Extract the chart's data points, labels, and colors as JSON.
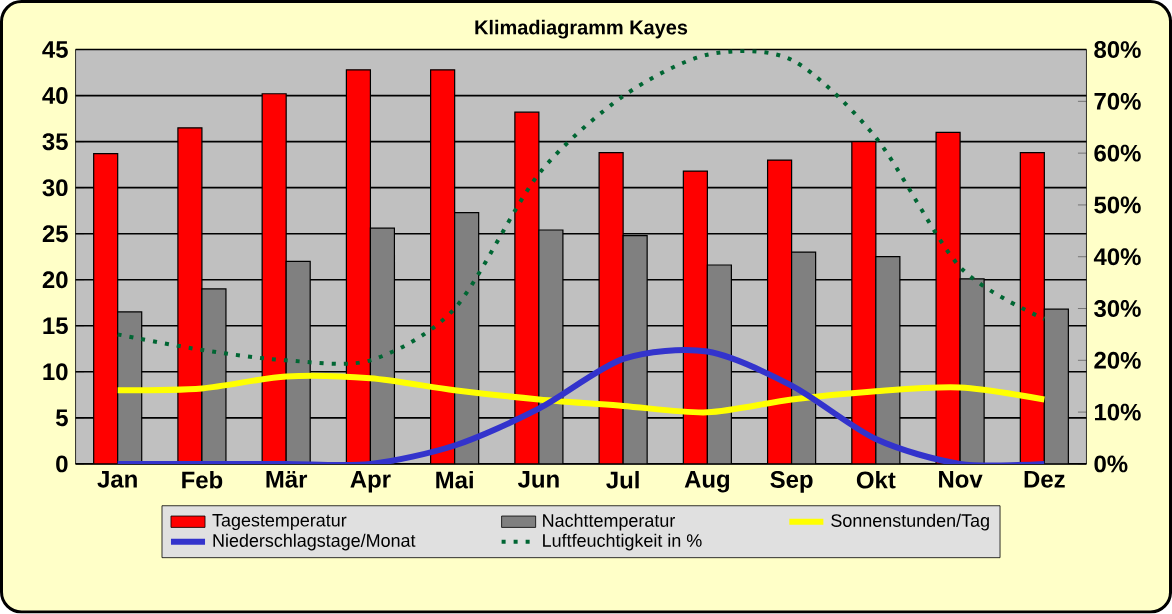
{
  "chart_data": {
    "type": "bar",
    "title": "Klimadiagramm Kayes",
    "categories": [
      "Jan",
      "Feb",
      "Mär",
      "Apr",
      "Mai",
      "Jun",
      "Jul",
      "Aug",
      "Sep",
      "Okt",
      "Nov",
      "Dez"
    ],
    "series": [
      {
        "name": "Tagestemperatur",
        "color": "#ff0000",
        "values": [
          33.7,
          36.5,
          40.2,
          42.8,
          42.8,
          38.2,
          33.8,
          31.8,
          33.0,
          35.0,
          36.0,
          33.8
        ]
      },
      {
        "name": "Nachttemperatur",
        "color": "#808080",
        "values": [
          16.5,
          19.0,
          22.0,
          25.6,
          27.3,
          25.4,
          24.8,
          21.6,
          23.0,
          22.5,
          20.1,
          16.8
        ]
      },
      {
        "name": "Sonnenstunden/Tag",
        "type": "line",
        "color": "#ffff00",
        "line_style": "solid",
        "values": [
          8.0,
          8.2,
          9.5,
          9.3,
          8.0,
          7.0,
          6.3,
          5.6,
          7.0,
          7.9,
          8.3,
          7.0
        ]
      },
      {
        "name": "Niederschlagstage/Monat",
        "type": "line",
        "color": "#3333cc",
        "line_style": "solid",
        "values": [
          0,
          0,
          0,
          0,
          2.0,
          6.0,
          11.4,
          12.2,
          8.5,
          2.7,
          0,
          0
        ]
      },
      {
        "name": "Luftfeuchtigkeit in %",
        "type": "line",
        "color": "#006633",
        "line_style": "dotted",
        "axis": "y2",
        "values": [
          25,
          22,
          20,
          20,
          30,
          56,
          71,
          79,
          78,
          63,
          38,
          28
        ]
      }
    ],
    "ylim": [
      0,
      45
    ],
    "yticks": [
      0,
      5,
      10,
      15,
      20,
      25,
      30,
      35,
      40,
      45
    ],
    "y2lim": [
      0,
      80
    ],
    "y2ticks": [
      {
        "value": 0,
        "label": "0%"
      },
      {
        "value": 10,
        "label": "10%"
      },
      {
        "value": 20,
        "label": "20%"
      },
      {
        "value": 30,
        "label": "30%"
      },
      {
        "value": 40,
        "label": "40%"
      },
      {
        "value": 50,
        "label": "50%"
      },
      {
        "value": 60,
        "label": "60%"
      },
      {
        "value": 70,
        "label": "70%"
      },
      {
        "value": 80,
        "label": "80%"
      }
    ],
    "grid": "y",
    "legend": "bottom",
    "marker": "none"
  }
}
